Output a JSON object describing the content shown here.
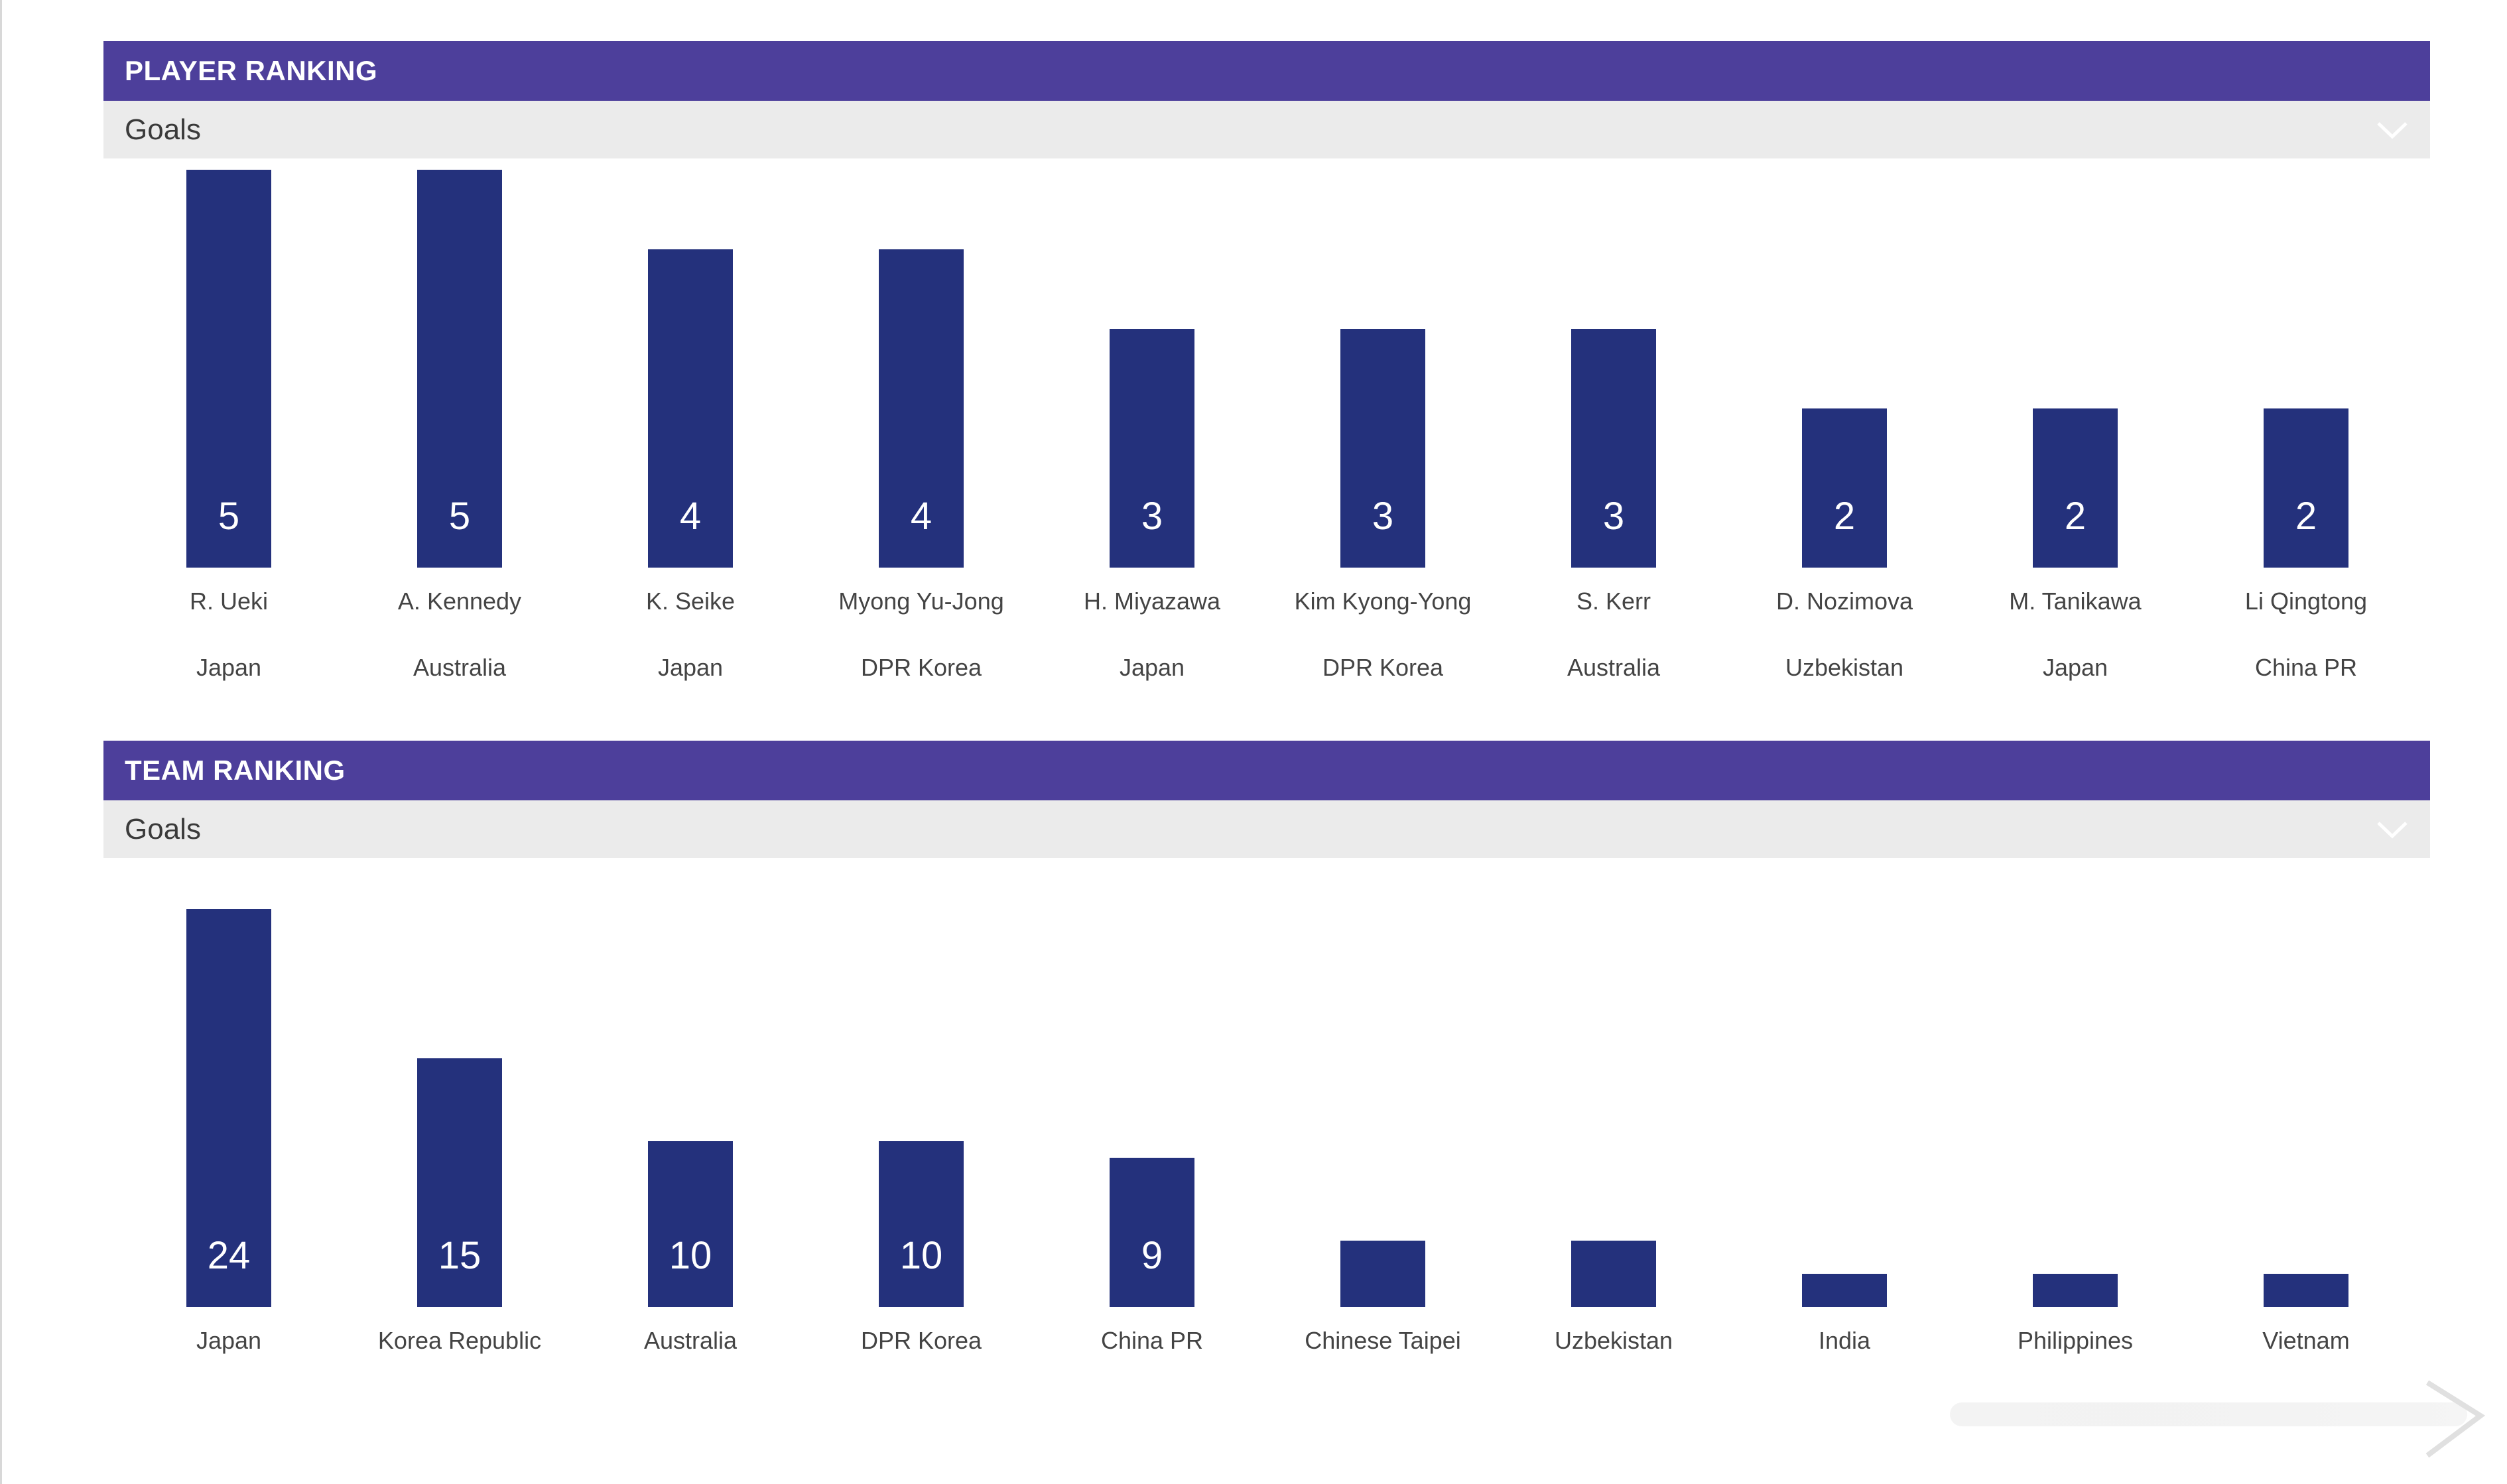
{
  "player_panel": {
    "header": "PLAYER RANKING",
    "select_value": "Goals"
  },
  "team_panel": {
    "header": "TEAM RANKING",
    "select_value": "Goals"
  },
  "icons": {
    "dropdown": "chevron-down-icon"
  },
  "colors": {
    "header": "#4d3f9b",
    "bar": "#24317c",
    "select_bg": "#ebebeb"
  },
  "chart_data": [
    {
      "type": "bar",
      "title": "",
      "xlabel": "",
      "ylabel": "",
      "ylim": [
        0,
        5
      ],
      "categories": [
        "R. Ueki",
        "A. Kennedy",
        "K. Seike",
        "Myong Yu-Jong",
        "H. Miyazawa",
        "Kim Kyong-Yong",
        "S. Kerr",
        "D. Nozimova",
        "M. Tanikawa",
        "Li Qingtong"
      ],
      "teams": [
        "Japan",
        "Australia",
        "Japan",
        "DPR Korea",
        "Japan",
        "DPR Korea",
        "Australia",
        "Uzbekistan",
        "Japan",
        "China PR"
      ],
      "values": [
        5,
        5,
        4,
        4,
        3,
        3,
        3,
        2,
        2,
        2
      ],
      "value_labels": [
        "5",
        "5",
        "4",
        "4",
        "3",
        "3",
        "3",
        "2",
        "2",
        "2"
      ],
      "grid": false
    },
    {
      "type": "bar",
      "title": "",
      "xlabel": "",
      "ylabel": "",
      "ylim": [
        0,
        24
      ],
      "categories": [
        "Japan",
        "Korea Republic",
        "Australia",
        "DPR Korea",
        "China PR",
        "Chinese Taipei",
        "Uzbekistan",
        "India",
        "Philippines",
        "Vietnam"
      ],
      "values": [
        24,
        15,
        10,
        10,
        9,
        4,
        4,
        2,
        2,
        2
      ],
      "value_labels": [
        "24",
        "15",
        "10",
        "10",
        "9",
        "",
        "",
        "",
        "",
        ""
      ],
      "grid": false
    }
  ]
}
